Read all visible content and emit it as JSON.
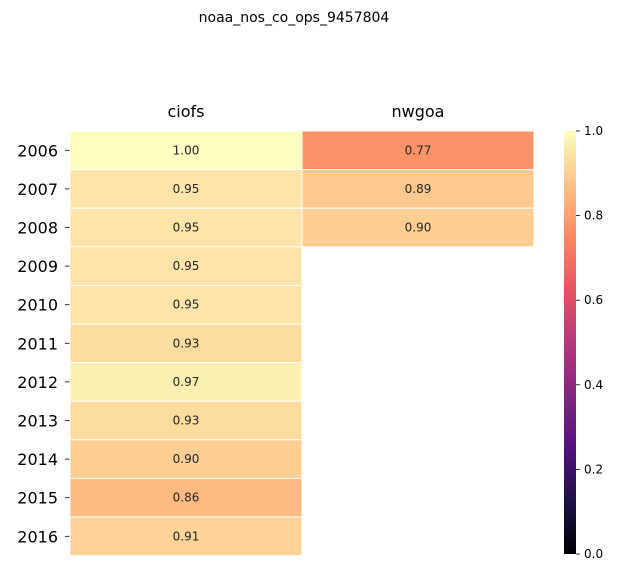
{
  "chart_data": {
    "type": "heatmap",
    "title": "noaa_nos_co_ops_9457804",
    "columns": [
      "ciofs",
      "nwgoa"
    ],
    "rows": [
      "2006",
      "2007",
      "2008",
      "2009",
      "2010",
      "2011",
      "2012",
      "2013",
      "2014",
      "2015",
      "2016"
    ],
    "values": [
      [
        1.0,
        0.77
      ],
      [
        0.95,
        0.89
      ],
      [
        0.95,
        0.9
      ],
      [
        0.95,
        null
      ],
      [
        0.95,
        null
      ],
      [
        0.93,
        null
      ],
      [
        0.97,
        null
      ],
      [
        0.93,
        null
      ],
      [
        0.9,
        null
      ],
      [
        0.86,
        null
      ],
      [
        0.91,
        null
      ]
    ],
    "value_format": "0.00",
    "colorbar": {
      "range": [
        0.0,
        1.0
      ],
      "ticks": [
        "0.0",
        "0.2",
        "0.4",
        "0.6",
        "0.8",
        "1.0"
      ],
      "colormap": "magma",
      "position": "right"
    },
    "colors": {
      "magma_stops": [
        "#000004",
        "#1d1147",
        "#51127c",
        "#822681",
        "#b73779",
        "#e75263",
        "#fc8961",
        "#fec287",
        "#fcfdbf"
      ]
    }
  }
}
